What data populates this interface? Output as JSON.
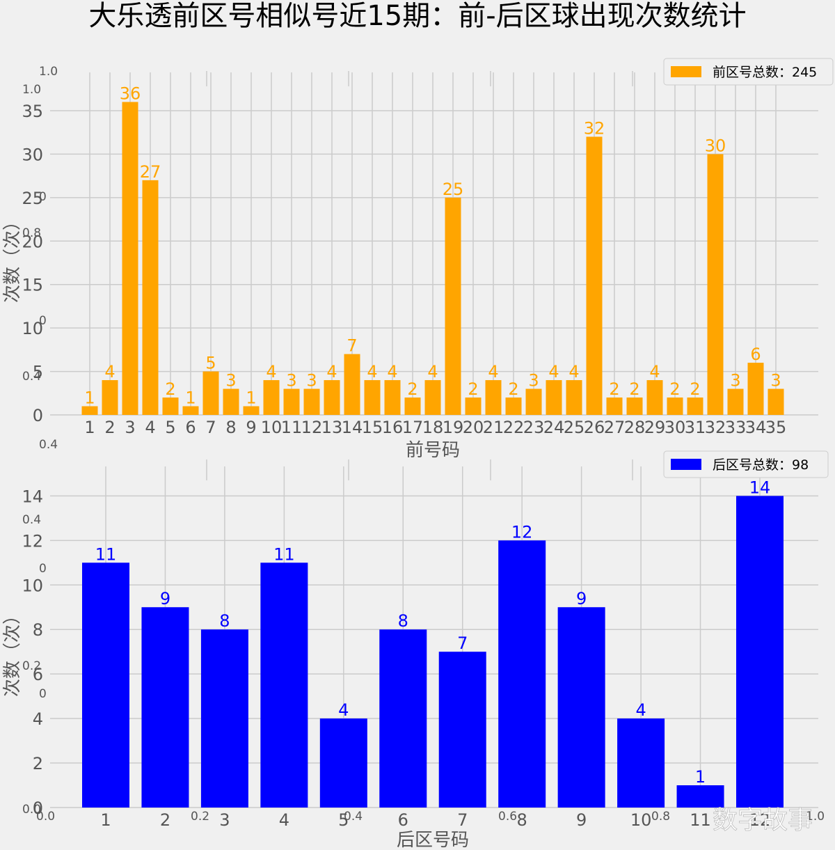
{
  "title": "大乐透前区号相似号近15期：前-后区球出现次数统计",
  "watermark": "数字故事",
  "chart_data": [
    {
      "type": "bar",
      "color": "#ffa500",
      "legend": "前区号总数：245",
      "legend_position": "top-right",
      "xlabel": "前号码",
      "ylabel": "次数（次）",
      "categories": [
        "1",
        "2",
        "3",
        "4",
        "5",
        "6",
        "7",
        "8",
        "9",
        "10",
        "11",
        "12",
        "13",
        "14",
        "15",
        "16",
        "17",
        "18",
        "19",
        "20",
        "21",
        "22",
        "23",
        "24",
        "25",
        "26",
        "27",
        "28",
        "29",
        "30",
        "31",
        "32",
        "33",
        "34",
        "35"
      ],
      "values": [
        1,
        4,
        36,
        27,
        2,
        1,
        5,
        3,
        1,
        4,
        3,
        3,
        4,
        7,
        4,
        4,
        2,
        4,
        25,
        2,
        4,
        2,
        3,
        4,
        4,
        32,
        2,
        2,
        4,
        2,
        2,
        30,
        3,
        6,
        3
      ],
      "yticks": [
        0,
        5,
        10,
        15,
        20,
        25,
        30,
        35
      ],
      "ylim": [
        0,
        37.8
      ],
      "grid": true
    },
    {
      "type": "bar",
      "color": "#0000ff",
      "legend": "后区号总数：98",
      "legend_position": "top-right",
      "xlabel": "后区号码",
      "ylabel": "次数（次）",
      "categories": [
        "1",
        "2",
        "3",
        "4",
        "5",
        "6",
        "7",
        "8",
        "9",
        "10",
        "11",
        "12"
      ],
      "values": [
        11,
        9,
        8,
        11,
        4,
        8,
        7,
        12,
        9,
        4,
        1,
        14
      ],
      "yticks": [
        0,
        2,
        4,
        6,
        8,
        10,
        12,
        14
      ],
      "ylim": [
        0,
        14.7
      ],
      "grid": true
    }
  ],
  "ghost_axis_labels": [
    "1.0",
    "1.0",
    "0",
    "0.8",
    "0",
    "0.4",
    "0.4",
    "0.4",
    "0",
    "0.2",
    "0",
    "0.0",
    "0.0",
    "0.2",
    "0.4",
    "0.6",
    "0.8",
    "1.0"
  ]
}
